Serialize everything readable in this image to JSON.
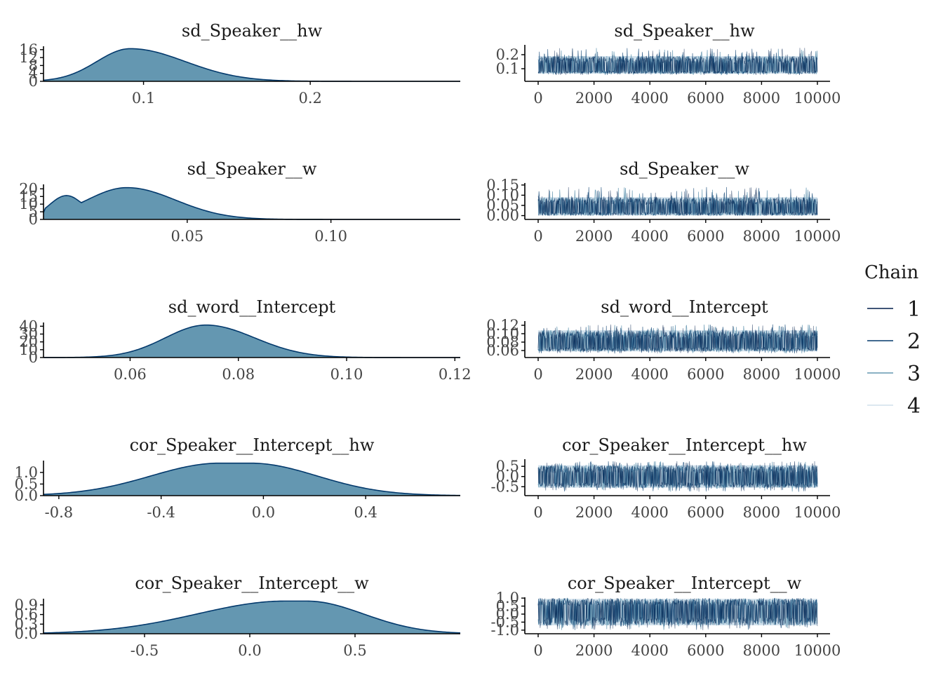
{
  "colors": {
    "density_fill": "#6497b1",
    "density_line": "#03396c",
    "chain_1": "#011f4b",
    "chain_2": "#03396c",
    "chain_3": "#6497b1",
    "chain_4": "#d1e1ec"
  },
  "legend": {
    "title": "Chain",
    "items": [
      {
        "label": "1",
        "color": "#011f4b"
      },
      {
        "label": "2",
        "color": "#03396c"
      },
      {
        "label": "3",
        "color": "#6497b1"
      },
      {
        "label": "4",
        "color": "#d1e1ec"
      }
    ]
  },
  "chart_data": [
    {
      "type": "area",
      "title": "sd_Speaker__hw",
      "xlim": [
        0.04,
        0.29
      ],
      "ylim": [
        0,
        17
      ],
      "x_ticks": [
        0.1,
        0.2
      ],
      "x_tick_labels": [
        "0.1",
        "0.2"
      ],
      "y_ticks": [
        0,
        4,
        8,
        12,
        16
      ],
      "y_tick_labels": [
        "0",
        "4",
        "8",
        "12",
        "16"
      ],
      "shape": {
        "kind": "skew",
        "mode": 0.092,
        "peak": 16.5,
        "sd_left": 0.02,
        "sd_right": 0.033
      }
    },
    {
      "type": "line",
      "title": "sd_Speaker__hw",
      "xlim": [
        0,
        10000
      ],
      "ylim": [
        0.03,
        0.27
      ],
      "x_ticks": [
        0,
        2000,
        4000,
        6000,
        8000,
        10000
      ],
      "x_tick_labels": [
        "0",
        "2000",
        "4000",
        "6000",
        "8000",
        "10000"
      ],
      "y_ticks": [
        0.1,
        0.2
      ],
      "y_tick_labels": [
        "0.1",
        "0.2"
      ],
      "trace": {
        "center": 0.1,
        "band_low": 0.065,
        "band_high": 0.19,
        "spike_high": 0.25,
        "spike_low": 0.055
      }
    },
    {
      "type": "area",
      "title": "sd_Speaker__w",
      "xlim": [
        0.0,
        0.145
      ],
      "ylim": [
        0,
        22
      ],
      "x_ticks": [
        0.05,
        0.1
      ],
      "x_tick_labels": [
        "0.05",
        "0.10"
      ],
      "y_ticks": [
        0,
        5,
        10,
        15,
        20
      ],
      "y_tick_labels": [
        "0",
        "5",
        "10",
        "15",
        "20"
      ],
      "shape": {
        "kind": "skew_cut",
        "mode": 0.029,
        "peak": 20.8,
        "sd_left": 0.014,
        "sd_right": 0.017,
        "start_value": 4.5,
        "bump": 0.008
      }
    },
    {
      "type": "line",
      "title": "sd_Speaker__w",
      "xlim": [
        0,
        10000
      ],
      "ylim": [
        -0.005,
        0.16
      ],
      "x_ticks": [
        0,
        2000,
        4000,
        6000,
        8000,
        10000
      ],
      "x_tick_labels": [
        "0",
        "2000",
        "4000",
        "6000",
        "8000",
        "10000"
      ],
      "y_ticks": [
        0,
        0.05,
        0.1,
        0.15
      ],
      "y_tick_labels": [
        "0.00",
        "0.05",
        "0.10",
        "0.15"
      ],
      "trace": {
        "center": 0.03,
        "band_low": 0.001,
        "band_high": 0.09,
        "spike_high": 0.14,
        "spike_low": 0.0
      }
    },
    {
      "type": "area",
      "title": "sd_word__Intercept",
      "xlim": [
        0.044,
        0.121
      ],
      "ylim": [
        0,
        43
      ],
      "x_ticks": [
        0.06,
        0.08,
        0.1,
        0.12
      ],
      "x_tick_labels": [
        "0.06",
        "0.08",
        "0.10",
        "0.12"
      ],
      "y_ticks": [
        0,
        10,
        20,
        30,
        40
      ],
      "y_tick_labels": [
        "0",
        "10",
        "20",
        "30",
        "40"
      ],
      "shape": {
        "kind": "skew",
        "mode": 0.074,
        "peak": 41.5,
        "sd_left": 0.0075,
        "sd_right": 0.009
      }
    },
    {
      "type": "line",
      "title": "sd_word__Intercept",
      "xlim": [
        0,
        10000
      ],
      "ylim": [
        0.05,
        0.13
      ],
      "x_ticks": [
        0,
        2000,
        4000,
        6000,
        8000,
        10000
      ],
      "x_tick_labels": [
        "0",
        "2000",
        "4000",
        "6000",
        "8000",
        "10000"
      ],
      "y_ticks": [
        0.06,
        0.08,
        0.1,
        0.12
      ],
      "y_tick_labels": [
        "0.06",
        "0.08",
        "0.10",
        "0.12"
      ],
      "trace": {
        "center": 0.075,
        "band_low": 0.058,
        "band_high": 0.108,
        "spike_high": 0.122,
        "spike_low": 0.053
      }
    },
    {
      "type": "area",
      "title": "cor_Speaker__Intercept__hw",
      "xlim": [
        -0.86,
        0.77
      ],
      "ylim": [
        0,
        1.45
      ],
      "x_ticks": [
        -0.8,
        -0.4,
        0.0,
        0.4
      ],
      "x_tick_labels": [
        "-0.8",
        "-0.4",
        "0.0",
        "0.4"
      ],
      "y_ticks": [
        0,
        0.5,
        1.0
      ],
      "y_tick_labels": [
        "0.0",
        "0.5",
        "1.0"
      ],
      "shape": {
        "kind": "flat",
        "mode": -0.11,
        "peak": 1.4,
        "sd_left": 0.27,
        "sd_right": 0.26,
        "flat": 0.12
      }
    },
    {
      "type": "line",
      "title": "cor_Speaker__Intercept__hw",
      "xlim": [
        0,
        10000
      ],
      "ylim": [
        -0.8,
        0.85
      ],
      "x_ticks": [
        0,
        2000,
        4000,
        6000,
        8000,
        10000
      ],
      "x_tick_labels": [
        "0",
        "2000",
        "4000",
        "6000",
        "8000",
        "10000"
      ],
      "y_ticks": [
        -0.5,
        0.0,
        0.5
      ],
      "y_tick_labels": [
        "-0.5",
        "0.0",
        "0.5"
      ],
      "trace": {
        "center": -0.1,
        "band_low": -0.55,
        "band_high": 0.55,
        "spike_high": 0.75,
        "spike_low": -0.75
      }
    },
    {
      "type": "area",
      "title": "cor_Speaker__Intercept__w",
      "xlim": [
        -0.98,
        1.0
      ],
      "ylim": [
        0,
        1.05
      ],
      "x_ticks": [
        -0.5,
        0.0,
        0.5
      ],
      "x_tick_labels": [
        "-0.5",
        "0.0",
        "0.5"
      ],
      "y_ticks": [
        0,
        0.3,
        0.6,
        0.9
      ],
      "y_tick_labels": [
        "0.0",
        "0.3",
        "0.6",
        "0.9"
      ],
      "shape": {
        "kind": "flat",
        "mode": 0.22,
        "peak": 1.02,
        "sd_left": 0.42,
        "sd_right": 0.27,
        "flat": 0.1
      }
    },
    {
      "type": "line",
      "title": "cor_Speaker__Intercept__w",
      "xlim": [
        0,
        10000
      ],
      "ylim": [
        -1.05,
        1.05
      ],
      "x_ticks": [
        0,
        2000,
        4000,
        6000,
        8000,
        10000
      ],
      "x_tick_labels": [
        "0",
        "2000",
        "4000",
        "6000",
        "8000",
        "10000"
      ],
      "y_ticks": [
        -1.0,
        -0.5,
        0.0,
        0.5,
        1.0
      ],
      "y_tick_labels": [
        "-1.0",
        "-0.5",
        "0.0",
        "0.5",
        "1.0"
      ],
      "trace": {
        "center": 0.2,
        "band_low": -0.7,
        "band_high": 0.95,
        "spike_high": 1.0,
        "spike_low": -1.0
      }
    }
  ]
}
